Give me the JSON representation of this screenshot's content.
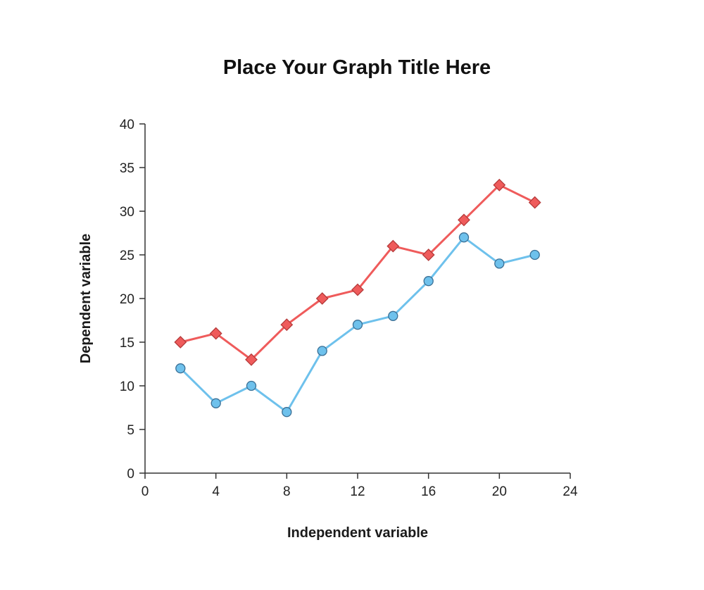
{
  "chart_data": {
    "type": "line",
    "title": "Place Your Graph Title Here",
    "xlabel": "Independent variable",
    "ylabel": "Dependent variable",
    "xlim": [
      0,
      24
    ],
    "ylim": [
      0,
      40
    ],
    "xticks": [
      0,
      4,
      8,
      12,
      16,
      20,
      24
    ],
    "yticks": [
      0,
      5,
      10,
      15,
      20,
      25,
      30,
      35,
      40
    ],
    "grid": false,
    "legend": "none",
    "series": [
      {
        "color": "#ef5b5b",
        "fill": "#ef5b5b",
        "stroke": "#b53a3a",
        "marker": "diamond",
        "x": [
          2,
          4,
          6,
          8,
          10,
          12,
          14,
          16,
          18,
          20,
          22
        ],
        "y": [
          15,
          16,
          13,
          17,
          20,
          21,
          26,
          25,
          29,
          33,
          31
        ]
      },
      {
        "color": "#6ec1ec",
        "fill": "#6ec1ec",
        "stroke": "#3a6f95",
        "marker": "circle",
        "x": [
          2,
          4,
          6,
          8,
          10,
          12,
          14,
          16,
          18,
          20,
          22
        ],
        "y": [
          12,
          8,
          10,
          7,
          14,
          17,
          18,
          22,
          27,
          24,
          25
        ]
      }
    ]
  }
}
